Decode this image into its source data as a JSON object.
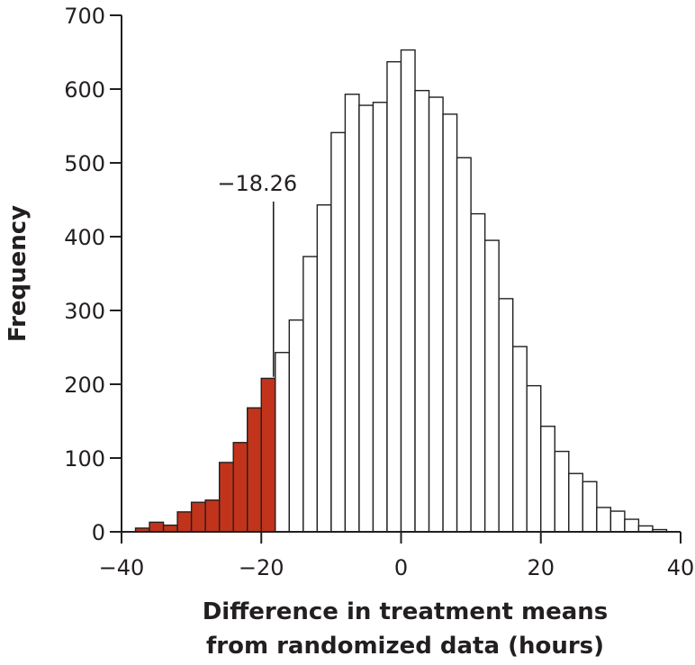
{
  "chart_data": {
    "type": "bar",
    "subtype": "histogram",
    "title": "",
    "xlabel_lines": [
      "Difference in treatment means",
      "from randomized data (hours)"
    ],
    "ylabel": "Frequency",
    "xlim": [
      -40,
      40
    ],
    "ylim": [
      0,
      700
    ],
    "xticks": [
      -40,
      -20,
      0,
      20,
      40
    ],
    "xtick_labels": [
      "−40",
      "−20",
      "0",
      "20",
      "40"
    ],
    "yticks": [
      0,
      100,
      200,
      300,
      400,
      500,
      600,
      700
    ],
    "ytick_labels": [
      "0",
      "100",
      "200",
      "300",
      "400",
      "500",
      "600",
      "700"
    ],
    "bin_width": 2,
    "bins_start": [
      -38,
      -36,
      -34,
      -32,
      -30,
      -28,
      -26,
      -24,
      -22,
      -20,
      -18,
      -16,
      -14,
      -12,
      -10,
      -8,
      -6,
      -4,
      -2,
      0,
      2,
      4,
      6,
      8,
      10,
      12,
      14,
      16,
      18,
      20,
      22,
      24,
      26,
      28,
      30,
      32,
      34,
      36
    ],
    "values": [
      5,
      13,
      9,
      27,
      40,
      43,
      94,
      121,
      168,
      208,
      243,
      287,
      373,
      443,
      541,
      593,
      578,
      582,
      637,
      653,
      598,
      589,
      566,
      507,
      431,
      395,
      316,
      251,
      198,
      143,
      109,
      79,
      68,
      33,
      28,
      17,
      8,
      3
    ],
    "highlight_threshold": -18.26,
    "highlight_color": "#c1341b",
    "bar_fill": "#ffffff",
    "bar_stroke": "#231f20",
    "annotation": {
      "text": "−18.26",
      "x": -18.26
    }
  }
}
